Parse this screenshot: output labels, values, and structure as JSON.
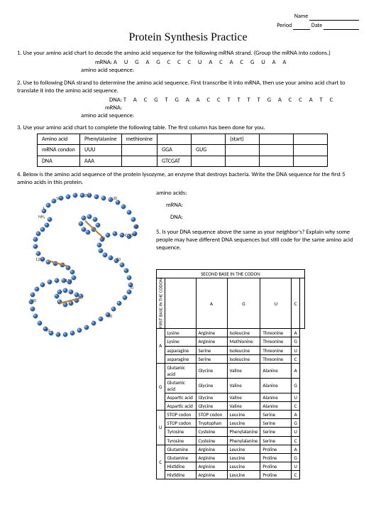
{
  "header": {
    "name_label": "Name",
    "period_label": "Period",
    "date_label": "Date"
  },
  "title": "Protein Synthesis Practice",
  "q1": {
    "text": "1. Use your amino acid chart to decode the amino acid sequence for the following mRNA strand. (Group the mRNA into codons.)",
    "mrna_label": "mRNA:",
    "mrna_seq": "A  U  G  A  G  C  C  C  U  A  C  A  C  G  U  A  A",
    "aas_label": "amino acid sequence:"
  },
  "q2": {
    "text": "2. Use to following DNA strand to determine the amino acid sequence. First transcribe it into mRNA,  then use your amino acid chart to translate it into the amino acid sequence.",
    "dna_label": "DNA:",
    "dna_seq": "T  A  C  G  T  G  A  A  C  C  T  T  T  T  G  A  C  C  A  T  C",
    "mrna_label": "mRNA:",
    "aas_label": "amino acid sequence:"
  },
  "q3": {
    "text": "3. Use your amino acid chart to complete the following table. The first column has been done for you.",
    "table": {
      "r1": [
        "Amino acid",
        "Phenylalanine",
        "methionine",
        "",
        "",
        "(start)",
        "",
        ""
      ],
      "r2": [
        "mRNA condon",
        "UUU",
        "",
        "GGA",
        "GUG",
        "",
        "",
        ""
      ],
      "r3": [
        "DNA",
        "AAA",
        "",
        "GTCGAT",
        "",
        "",
        "",
        ""
      ]
    }
  },
  "q4": {
    "text": "4.  Below is the amino acid sequence of the protein lysozyme, an enzyme that destroys bacteria. Write the DNA sequence for the first 5 amino acids in this protein.",
    "aa_label": "amino acids:",
    "mrna_label": "mRNA:",
    "dna_label": "DNA:",
    "q5": "5. Is your DNA sequence above the same as your neighbor's? Explain why some people may have different DNA sequences but still code for the same amino acid sequence."
  },
  "codon_table": {
    "title": "SECOND  BASE IN THE CODON",
    "side_label": "FIRST BASE IN THE CODON",
    "cols": [
      "A",
      "G",
      "U",
      "C"
    ],
    "rows": [
      {
        "b": "A",
        "cells": [
          [
            "Lysine",
            "Lysine",
            "asparagine",
            "asparagine"
          ],
          [
            "Arginine",
            "Arginine",
            "Serine",
            "Serine"
          ],
          [
            "Isoleucine",
            "Methionine",
            "Isoleucine",
            "Isoleucine"
          ],
          [
            "Threonine",
            "Threonine",
            "Threonine",
            "Threonine"
          ]
        ],
        "r": [
          "A",
          "G",
          "U",
          "C"
        ]
      },
      {
        "b": "G",
        "cells": [
          [
            "Glutamic acid",
            "Glutamic acid",
            "Aspartic acid",
            "Aspartic acid"
          ],
          [
            "Glycine",
            "Glycine",
            "Glycine",
            "Glycine"
          ],
          [
            "Valine",
            "Valine",
            "Valine",
            "Valine"
          ],
          [
            "Alanine",
            "Alanine",
            "Alanine",
            "Alanine"
          ]
        ],
        "r": [
          "A",
          "G",
          "U",
          "C"
        ]
      },
      {
        "b": "U",
        "cells": [
          [
            "STOP codon",
            "STOP codon",
            "Tyrosine",
            "Tyrosine"
          ],
          [
            "STOP codon",
            "Tryptophan",
            "Cysteine",
            "Cysteine"
          ],
          [
            "Leucine",
            "Leucine",
            "Phenylalanine",
            "Phenylalanine"
          ],
          [
            "Serine",
            "Serine",
            "Serine",
            "Serine"
          ]
        ],
        "r": [
          "A",
          "G",
          "U",
          "C"
        ]
      },
      {
        "b": "C",
        "cells": [
          [
            "Glutamine",
            "Glutamine",
            "Histidine",
            "Histidine"
          ],
          [
            "Arginine",
            "Arginine",
            "Arginine",
            "Arginine"
          ],
          [
            "Leucine",
            "Leucine",
            "Leucine",
            "Leucine"
          ],
          [
            "Proline",
            "Proline",
            "Proline",
            "Proline"
          ]
        ],
        "r": [
          "A",
          "G",
          "U",
          "C"
        ]
      }
    ]
  },
  "diagram": {
    "bead_color": "#4a7fc4",
    "bead_highlight": "#9cc5ec",
    "bead_stroke": "#1b4a8a",
    "labels": [
      "1",
      "10",
      "20",
      "30",
      "40",
      "50",
      "60",
      "70",
      "80",
      "90",
      "100",
      "110",
      "120",
      "COOH",
      "NH₂"
    ]
  }
}
